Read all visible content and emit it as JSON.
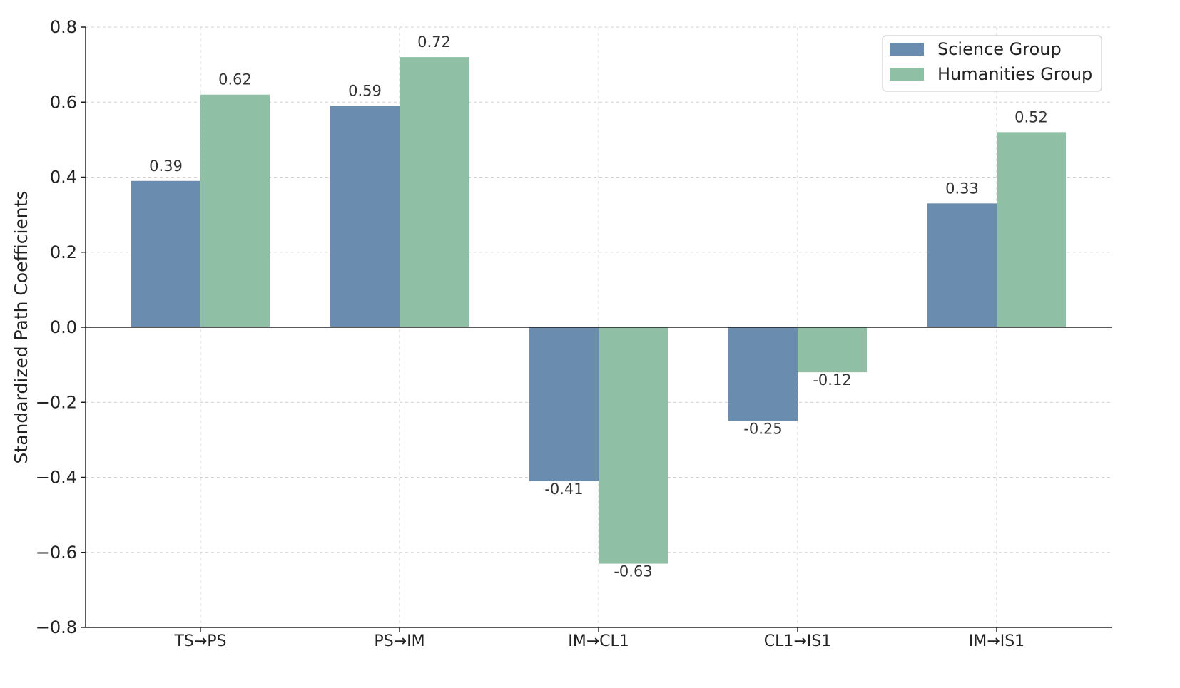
{
  "chart_data": {
    "type": "bar",
    "title": "",
    "xlabel": "",
    "ylabel": "Standardized Path Coefficients",
    "categories": [
      "TS→PS",
      "PS→IM",
      "IM→CL1",
      "CL1→IS1",
      "IM→IS1"
    ],
    "series": [
      {
        "name": "Science Group",
        "color": "#6a8caf",
        "values": [
          0.39,
          0.59,
          -0.41,
          -0.25,
          0.33
        ]
      },
      {
        "name": "Humanities Group",
        "color": "#8fbfa5",
        "values": [
          0.62,
          0.72,
          -0.63,
          -0.12,
          0.52
        ]
      }
    ],
    "ylim": [
      -0.8,
      0.8
    ],
    "yticks": [
      0.8,
      0.6,
      0.4,
      0.2,
      0.0,
      -0.2,
      -0.4,
      -0.6,
      -0.8
    ],
    "ytick_labels": [
      "0.8",
      "0.6",
      "0.4",
      "0.2",
      "0.0",
      "−0.2",
      "−0.4",
      "−0.6",
      "−0.8"
    ],
    "value_labels": [
      [
        "0.39",
        "0.59",
        "-0.41",
        "-0.25",
        "0.33"
      ],
      [
        "0.62",
        "0.72",
        "-0.63",
        "-0.12",
        "0.52"
      ]
    ],
    "grid": true,
    "legend_position": "top-right"
  }
}
